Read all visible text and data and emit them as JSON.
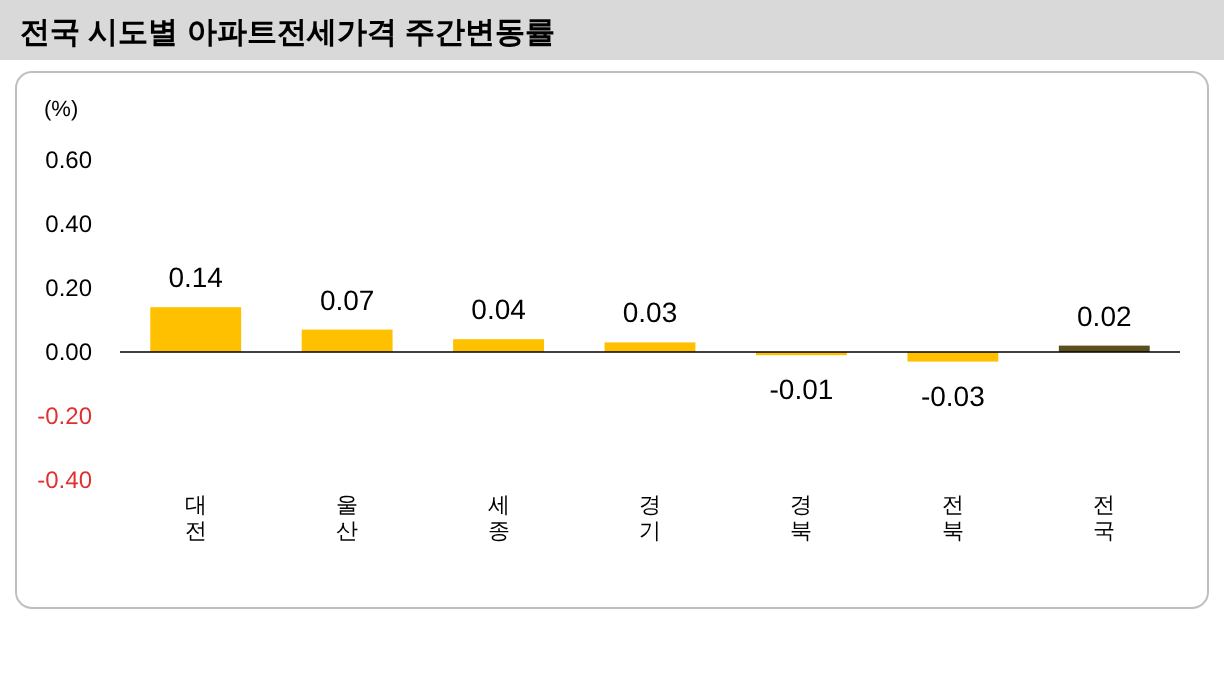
{
  "chart_data": {
    "type": "bar",
    "title": "전국 시도별 아파트전세가격 주간변동률",
    "ylabel": "(%)",
    "categories": [
      "대전",
      "울산",
      "세종",
      "경기",
      "경북",
      "전북",
      "전국"
    ],
    "values": [
      0.14,
      0.07,
      0.04,
      0.03,
      -0.01,
      -0.03,
      0.02
    ],
    "colors": [
      "#ffc000",
      "#ffc000",
      "#ffc000",
      "#ffc000",
      "#ffc000",
      "#ffc000",
      "#5c4f1e"
    ],
    "data_labels": true,
    "ylim": [
      -0.4,
      0.6
    ],
    "yticks": [
      {
        "value": 0.6,
        "label": "0.60"
      },
      {
        "value": 0.4,
        "label": "0.40"
      },
      {
        "value": 0.2,
        "label": "0.20"
      },
      {
        "value": 0,
        "label": "0.00"
      },
      {
        "value": -0.2,
        "label": "-0.20"
      },
      {
        "value": -0.4,
        "label": "-0.40"
      }
    ]
  }
}
